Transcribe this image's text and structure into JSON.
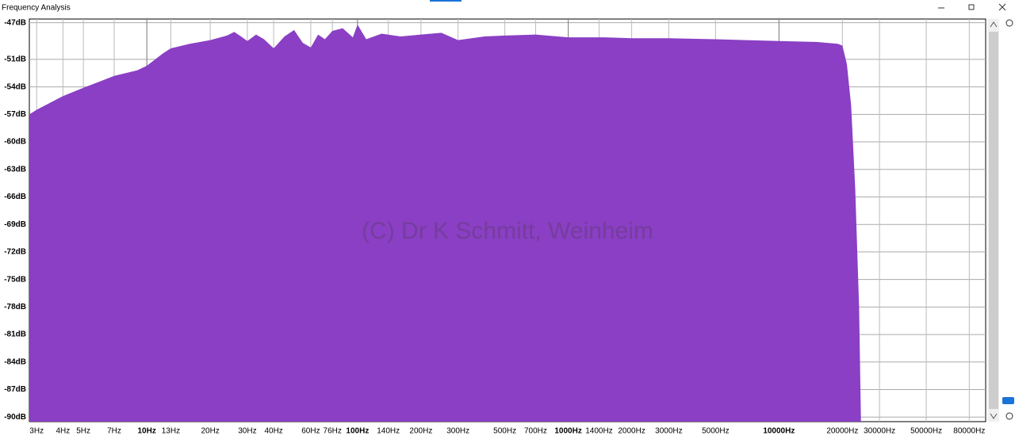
{
  "window_title": "Frequency Analysis",
  "chart_data": {
    "type": "area",
    "annotation": "(C) Dr K Schmitt, Weinheim",
    "x_scale": "log",
    "grid": true,
    "color": "#8a3fc4",
    "xlim": [
      2.77,
      95700
    ],
    "ylim": [
      -90.5,
      -46.6
    ],
    "xticks": [
      {
        "value": 3,
        "label": "3Hz"
      },
      {
        "value": 4,
        "label": "4Hz"
      },
      {
        "value": 5,
        "label": "5Hz"
      },
      {
        "value": 7,
        "label": "7Hz"
      },
      {
        "value": 10,
        "label": "10Hz"
      },
      {
        "value": 13,
        "label": "13Hz"
      },
      {
        "value": 20,
        "label": "20Hz"
      },
      {
        "value": 30,
        "label": "30Hz"
      },
      {
        "value": 40,
        "label": "40Hz"
      },
      {
        "value": 60,
        "label": "60Hz"
      },
      {
        "value": 76,
        "label": "76Hz"
      },
      {
        "value": 100,
        "label": "100Hz"
      },
      {
        "value": 140,
        "label": "140Hz"
      },
      {
        "value": 200,
        "label": "200Hz"
      },
      {
        "value": 300,
        "label": "300Hz"
      },
      {
        "value": 500,
        "label": "500Hz"
      },
      {
        "value": 700,
        "label": "700Hz"
      },
      {
        "value": 1000,
        "label": "1000Hz"
      },
      {
        "value": 1400,
        "label": "1400Hz"
      },
      {
        "value": 2000,
        "label": "2000Hz"
      },
      {
        "value": 3000,
        "label": "3000Hz"
      },
      {
        "value": 5000,
        "label": "5000Hz"
      },
      {
        "value": 10000,
        "label": "10000Hz"
      },
      {
        "value": 20000,
        "label": "20000Hz"
      },
      {
        "value": 30000,
        "label": "30000Hz"
      },
      {
        "value": 50000,
        "label": "50000Hz"
      },
      {
        "value": 80000,
        "label": "80000Hz"
      }
    ],
    "yticks": [
      {
        "value": -47,
        "label": "-47dB"
      },
      {
        "value": -51,
        "label": "-51dB"
      },
      {
        "value": -54,
        "label": "-54dB"
      },
      {
        "value": -57,
        "label": "-57dB"
      },
      {
        "value": -60,
        "label": "-60dB"
      },
      {
        "value": -63,
        "label": "-63dB"
      },
      {
        "value": -66,
        "label": "-66dB"
      },
      {
        "value": -69,
        "label": "-69dB"
      },
      {
        "value": -72,
        "label": "-72dB"
      },
      {
        "value": -75,
        "label": "-75dB"
      },
      {
        "value": -78,
        "label": "-78dB"
      },
      {
        "value": -81,
        "label": "-81dB"
      },
      {
        "value": -84,
        "label": "-84dB"
      },
      {
        "value": -87,
        "label": "-87dB"
      },
      {
        "value": -90,
        "label": "-90dB"
      }
    ],
    "x": [
      2.77,
      3,
      4,
      5,
      7,
      9,
      10,
      12,
      13,
      16,
      20,
      24,
      26,
      28,
      30,
      33,
      36,
      40,
      45,
      50,
      55,
      60,
      65,
      70,
      76,
      85,
      95,
      100,
      110,
      130,
      160,
      200,
      250,
      300,
      400,
      500,
      700,
      1000,
      1500,
      2000,
      3000,
      5000,
      7000,
      10000,
      15000,
      19000,
      20000,
      21000,
      22000,
      23000,
      24000,
      24500
    ],
    "values": [
      -57.0,
      -56.5,
      -55.0,
      -54.1,
      -52.8,
      -52.2,
      -51.7,
      -50.3,
      -49.8,
      -49.3,
      -48.9,
      -48.4,
      -48.0,
      -48.5,
      -49.0,
      -48.3,
      -48.8,
      -49.8,
      -48.5,
      -47.8,
      -49.2,
      -49.7,
      -48.3,
      -48.8,
      -47.9,
      -47.6,
      -48.6,
      -47.2,
      -48.8,
      -48.2,
      -48.5,
      -48.3,
      -48.1,
      -48.9,
      -48.5,
      -48.4,
      -48.3,
      -48.6,
      -48.6,
      -48.7,
      -48.7,
      -48.8,
      -48.9,
      -49.0,
      -49.1,
      -49.3,
      -49.5,
      -51.5,
      -56.0,
      -65.0,
      -78.0,
      -90.5
    ]
  }
}
